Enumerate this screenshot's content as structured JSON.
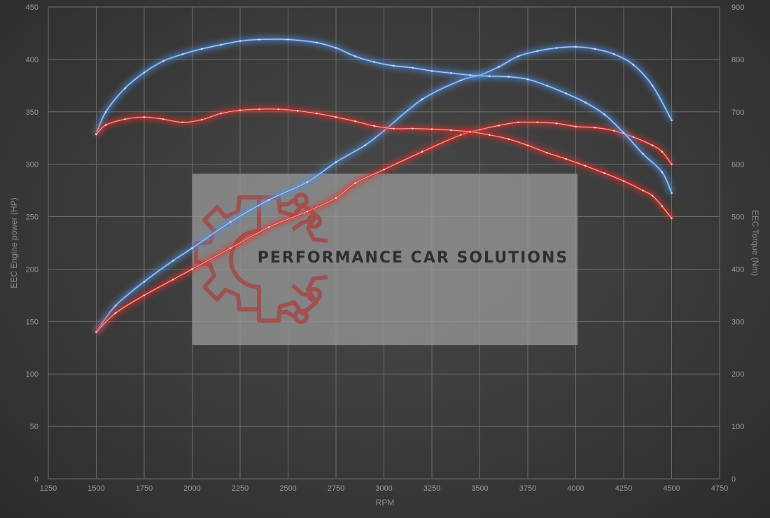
{
  "chart_data": {
    "type": "line",
    "xlabel": "RPM",
    "ylabel": "EEC Engine power (HP)",
    "y2label": "EEC Torque (Nm)",
    "xlim": [
      1250,
      4750
    ],
    "ylim": [
      0,
      450
    ],
    "y2lim": [
      0,
      900
    ],
    "x_ticks": [
      1250,
      1500,
      1750,
      2000,
      2250,
      2500,
      2750,
      3000,
      3250,
      3500,
      3750,
      4000,
      4250,
      4500,
      4750
    ],
    "y_ticks": [
      0,
      50,
      100,
      150,
      200,
      250,
      300,
      350,
      400,
      450
    ],
    "y2_ticks": [
      0,
      100,
      200,
      300,
      400,
      500,
      600,
      700,
      800,
      900
    ],
    "grid": true,
    "series": [
      {
        "axis": "left",
        "color": "#4f8fe0",
        "x": [
          1500,
          1600,
          1750,
          1900,
          2000,
          2200,
          2400,
          2600,
          2750,
          2900,
          3000,
          3200,
          3400,
          3500,
          3600,
          3700,
          3800,
          3900,
          4000,
          4100,
          4200,
          4300,
          4400,
          4500
        ],
        "values": [
          140,
          165,
          188,
          208,
          220,
          245,
          266,
          283,
          302,
          318,
          332,
          362,
          380,
          385,
          393,
          403,
          408,
          411,
          412,
          410,
          405,
          395,
          375,
          342
        ]
      },
      {
        "axis": "left",
        "color": "#e0302a",
        "x": [
          1500,
          1600,
          1750,
          1900,
          2000,
          2200,
          2400,
          2600,
          2750,
          2850,
          3000,
          3200,
          3400,
          3500,
          3600,
          3700,
          3800,
          3900,
          4000,
          4100,
          4200,
          4300,
          4400,
          4450,
          4500
        ],
        "values": [
          140,
          158,
          175,
          190,
          200,
          220,
          240,
          255,
          268,
          282,
          295,
          312,
          328,
          333,
          337,
          340,
          340,
          339,
          336,
          335,
          332,
          326,
          318,
          312,
          300
        ]
      },
      {
        "axis": "right",
        "color": "#4f8fe0",
        "x": [
          1500,
          1550,
          1650,
          1750,
          1850,
          1950,
          2050,
          2150,
          2250,
          2350,
          2500,
          2650,
          2750,
          2850,
          2950,
          3050,
          3150,
          3250,
          3350,
          3450,
          3550,
          3650,
          3750,
          3850,
          3950,
          4050,
          4150,
          4250,
          4350,
          4450,
          4500
        ],
        "values": [
          658,
          700,
          745,
          775,
          797,
          810,
          820,
          828,
          835,
          838,
          838,
          832,
          822,
          806,
          795,
          788,
          784,
          778,
          774,
          770,
          768,
          767,
          762,
          750,
          735,
          718,
          695,
          660,
          620,
          585,
          545
        ]
      },
      {
        "axis": "right",
        "color": "#e0302a",
        "x": [
          1500,
          1550,
          1650,
          1750,
          1850,
          1950,
          2050,
          2150,
          2250,
          2350,
          2450,
          2550,
          2650,
          2750,
          2850,
          2950,
          3050,
          3150,
          3250,
          3350,
          3450,
          3550,
          3650,
          3750,
          3850,
          3950,
          4050,
          4150,
          4250,
          4350,
          4400,
          4450,
          4500
        ],
        "values": [
          657,
          675,
          686,
          690,
          686,
          680,
          685,
          697,
          703,
          705,
          705,
          702,
          697,
          690,
          682,
          673,
          668,
          668,
          667,
          665,
          662,
          656,
          648,
          636,
          622,
          610,
          597,
          583,
          568,
          550,
          540,
          520,
          497
        ]
      }
    ]
  },
  "watermark": {
    "text": "PERFORMANCE CAR SOLUTIONS",
    "logo_color": "#a34a48",
    "panel_color": "#9a9a9a"
  }
}
